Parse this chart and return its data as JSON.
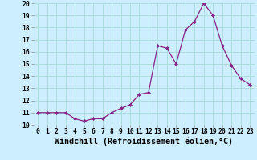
{
  "x": [
    0,
    1,
    2,
    3,
    4,
    5,
    6,
    7,
    8,
    9,
    10,
    11,
    12,
    13,
    14,
    15,
    16,
    17,
    18,
    19,
    20,
    21,
    22,
    23
  ],
  "y": [
    11.0,
    11.0,
    11.0,
    11.0,
    10.5,
    10.3,
    10.5,
    10.5,
    11.0,
    11.35,
    11.65,
    12.5,
    12.65,
    16.5,
    16.3,
    15.0,
    17.8,
    18.5,
    20.0,
    19.0,
    16.5,
    14.9,
    13.8,
    13.3
  ],
  "line_color": "#882288",
  "marker": "D",
  "marker_size": 2.0,
  "bg_color": "#cceeff",
  "grid_color": "#aadddd",
  "xlabel": "Windchill (Refroidissement éolien,°C)",
  "ylim": [
    10,
    20
  ],
  "xlim": [
    -0.5,
    23.5
  ],
  "yticks": [
    10,
    11,
    12,
    13,
    14,
    15,
    16,
    17,
    18,
    19,
    20
  ],
  "xticks": [
    0,
    1,
    2,
    3,
    4,
    5,
    6,
    7,
    8,
    9,
    10,
    11,
    12,
    13,
    14,
    15,
    16,
    17,
    18,
    19,
    20,
    21,
    22,
    23
  ],
  "tick_fontsize": 5.8,
  "label_fontsize": 7.2
}
